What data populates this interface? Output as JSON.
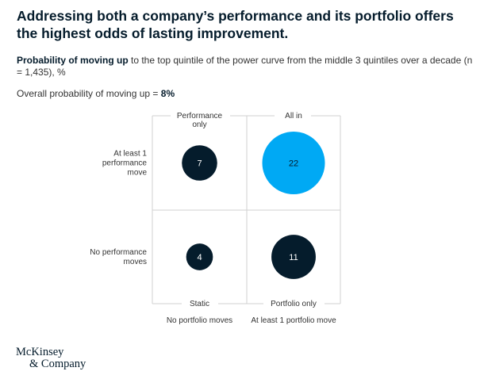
{
  "title": "Addressing both a company’s performance and its portfolio offers the highest odds of lasting improvement.",
  "subtitle": {
    "bold": "Probability of moving up",
    "rest": " to the top quintile of the power curve from the middle 3 quintiles over a decade (n = 1,435), %"
  },
  "overall": {
    "label": "Overall probability of moving up = ",
    "value": "8%"
  },
  "logo": {
    "line1": "McKinsey",
    "line2": "& Company"
  },
  "colors": {
    "dark": "#051c2c",
    "accent": "#00a9f4",
    "grid": "#d0d0d0"
  },
  "chart_data": {
    "type": "bubble-matrix",
    "column_top_labels": [
      [
        "Performance",
        "only"
      ],
      [
        "All in"
      ]
    ],
    "column_bottom_labels": [
      "Static",
      "Portfolio only"
    ],
    "column_categories": [
      "No portfolio moves",
      "At least 1 portfolio move"
    ],
    "row_labels": [
      [
        "At least 1",
        "performance",
        "move"
      ],
      [
        "No performance",
        "moves"
      ]
    ],
    "cells": [
      {
        "row": 0,
        "col": 0,
        "value": 7,
        "label": "7",
        "highlight": false
      },
      {
        "row": 0,
        "col": 1,
        "value": 22,
        "label": "22",
        "highlight": true
      },
      {
        "row": 1,
        "col": 0,
        "value": 4,
        "label": "4",
        "highlight": false
      },
      {
        "row": 1,
        "col": 1,
        "value": 11,
        "label": "11",
        "highlight": false
      }
    ]
  }
}
